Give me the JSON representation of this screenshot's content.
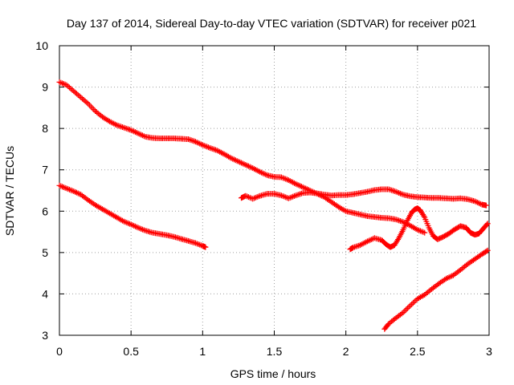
{
  "chart_data": {
    "type": "scatter",
    "title": "Day 137 of 2014, Sidereal Day-to-day VTEC variation (SDTVAR) for receiver p021",
    "xlabel": "GPS time / hours",
    "ylabel": "SDTVAR / TECUs",
    "xlim": [
      0,
      3
    ],
    "ylim": [
      3,
      10
    ],
    "xticks": [
      0,
      0.5,
      1,
      1.5,
      2,
      2.5,
      3
    ],
    "xtick_labels": [
      "0",
      "0.5",
      "1",
      "1.5",
      "2",
      "2.5",
      "3"
    ],
    "yticks": [
      3,
      4,
      5,
      6,
      7,
      8,
      9,
      10
    ],
    "ytick_labels": [
      "3",
      "4",
      "5",
      "6",
      "7",
      "8",
      "9",
      "10"
    ],
    "grid": true,
    "marker": "+",
    "color": "#ff0000",
    "series": [
      {
        "name": "track-1",
        "points": [
          [
            0.0,
            9.12
          ],
          [
            0.05,
            9.05
          ],
          [
            0.1,
            8.9
          ],
          [
            0.15,
            8.75
          ],
          [
            0.2,
            8.6
          ],
          [
            0.25,
            8.42
          ],
          [
            0.3,
            8.28
          ],
          [
            0.35,
            8.17
          ],
          [
            0.4,
            8.08
          ],
          [
            0.45,
            8.02
          ],
          [
            0.5,
            7.96
          ],
          [
            0.55,
            7.88
          ],
          [
            0.6,
            7.8
          ],
          [
            0.65,
            7.77
          ],
          [
            0.7,
            7.76
          ],
          [
            0.75,
            7.76
          ],
          [
            0.8,
            7.76
          ],
          [
            0.85,
            7.75
          ],
          [
            0.9,
            7.74
          ],
          [
            0.95,
            7.68
          ],
          [
            1.0,
            7.6
          ],
          [
            1.05,
            7.53
          ],
          [
            1.1,
            7.47
          ],
          [
            1.15,
            7.38
          ],
          [
            1.2,
            7.28
          ],
          [
            1.25,
            7.2
          ],
          [
            1.3,
            7.12
          ],
          [
            1.35,
            7.04
          ],
          [
            1.4,
            6.95
          ],
          [
            1.45,
            6.87
          ],
          [
            1.5,
            6.83
          ],
          [
            1.55,
            6.82
          ],
          [
            1.6,
            6.75
          ],
          [
            1.65,
            6.66
          ],
          [
            1.7,
            6.58
          ],
          [
            1.75,
            6.5
          ],
          [
            1.8,
            6.42
          ],
          [
            1.85,
            6.34
          ],
          [
            1.9,
            6.22
          ],
          [
            1.95,
            6.1
          ],
          [
            2.0,
            6.0
          ],
          [
            2.05,
            5.96
          ],
          [
            2.1,
            5.92
          ],
          [
            2.15,
            5.88
          ],
          [
            2.2,
            5.86
          ],
          [
            2.25,
            5.84
          ],
          [
            2.3,
            5.83
          ],
          [
            2.35,
            5.8
          ],
          [
            2.4,
            5.74
          ],
          [
            2.45,
            5.65
          ],
          [
            2.5,
            5.55
          ],
          [
            2.55,
            5.48
          ]
        ]
      },
      {
        "name": "track-2",
        "points": [
          [
            0.0,
            6.62
          ],
          [
            0.05,
            6.55
          ],
          [
            0.1,
            6.48
          ],
          [
            0.15,
            6.4
          ],
          [
            0.2,
            6.27
          ],
          [
            0.25,
            6.15
          ],
          [
            0.3,
            6.05
          ],
          [
            0.35,
            5.95
          ],
          [
            0.4,
            5.85
          ],
          [
            0.45,
            5.75
          ],
          [
            0.5,
            5.68
          ],
          [
            0.55,
            5.6
          ],
          [
            0.6,
            5.53
          ],
          [
            0.65,
            5.48
          ],
          [
            0.7,
            5.45
          ],
          [
            0.75,
            5.42
          ],
          [
            0.8,
            5.38
          ],
          [
            0.85,
            5.33
          ],
          [
            0.9,
            5.28
          ],
          [
            0.95,
            5.23
          ],
          [
            1.0,
            5.16
          ],
          [
            1.02,
            5.13
          ]
        ]
      },
      {
        "name": "track-3",
        "points": [
          [
            1.27,
            6.32
          ],
          [
            1.3,
            6.37
          ],
          [
            1.35,
            6.3
          ],
          [
            1.4,
            6.37
          ],
          [
            1.45,
            6.42
          ],
          [
            1.5,
            6.42
          ],
          [
            1.55,
            6.38
          ],
          [
            1.6,
            6.31
          ],
          [
            1.65,
            6.38
          ],
          [
            1.7,
            6.44
          ],
          [
            1.75,
            6.45
          ],
          [
            1.8,
            6.43
          ],
          [
            1.85,
            6.4
          ],
          [
            1.9,
            6.38
          ],
          [
            1.95,
            6.39
          ],
          [
            2.0,
            6.39
          ],
          [
            2.05,
            6.41
          ],
          [
            2.1,
            6.44
          ],
          [
            2.15,
            6.47
          ],
          [
            2.2,
            6.51
          ],
          [
            2.25,
            6.53
          ],
          [
            2.3,
            6.53
          ],
          [
            2.35,
            6.47
          ],
          [
            2.4,
            6.4
          ],
          [
            2.45,
            6.36
          ],
          [
            2.5,
            6.34
          ],
          [
            2.55,
            6.33
          ],
          [
            2.6,
            6.32
          ],
          [
            2.65,
            6.32
          ],
          [
            2.7,
            6.31
          ],
          [
            2.75,
            6.3
          ],
          [
            2.8,
            6.31
          ],
          [
            2.85,
            6.29
          ],
          [
            2.9,
            6.24
          ],
          [
            2.95,
            6.16
          ],
          [
            2.98,
            6.14
          ]
        ]
      },
      {
        "name": "track-4",
        "points": [
          [
            2.03,
            5.08
          ],
          [
            2.05,
            5.12
          ],
          [
            2.1,
            5.18
          ],
          [
            2.15,
            5.27
          ],
          [
            2.2,
            5.35
          ],
          [
            2.25,
            5.3
          ],
          [
            2.28,
            5.2
          ],
          [
            2.31,
            5.13
          ],
          [
            2.34,
            5.18
          ],
          [
            2.37,
            5.35
          ],
          [
            2.4,
            5.55
          ],
          [
            2.43,
            5.78
          ],
          [
            2.46,
            5.97
          ],
          [
            2.48,
            6.04
          ],
          [
            2.5,
            6.07
          ],
          [
            2.52,
            6.02
          ],
          [
            2.55,
            5.85
          ],
          [
            2.58,
            5.6
          ],
          [
            2.61,
            5.4
          ],
          [
            2.64,
            5.32
          ],
          [
            2.68,
            5.38
          ],
          [
            2.72,
            5.46
          ],
          [
            2.76,
            5.56
          ],
          [
            2.8,
            5.64
          ],
          [
            2.84,
            5.6
          ],
          [
            2.87,
            5.48
          ],
          [
            2.9,
            5.43
          ],
          [
            2.93,
            5.46
          ],
          [
            2.96,
            5.58
          ],
          [
            2.99,
            5.7
          ]
        ]
      },
      {
        "name": "track-5",
        "points": [
          [
            2.27,
            3.15
          ],
          [
            2.3,
            3.28
          ],
          [
            2.35,
            3.42
          ],
          [
            2.4,
            3.55
          ],
          [
            2.45,
            3.72
          ],
          [
            2.5,
            3.88
          ],
          [
            2.55,
            3.98
          ],
          [
            2.6,
            4.12
          ],
          [
            2.65,
            4.25
          ],
          [
            2.7,
            4.37
          ],
          [
            2.75,
            4.45
          ],
          [
            2.8,
            4.58
          ],
          [
            2.85,
            4.72
          ],
          [
            2.9,
            4.84
          ],
          [
            2.95,
            4.96
          ],
          [
            2.99,
            5.05
          ]
        ]
      }
    ]
  }
}
